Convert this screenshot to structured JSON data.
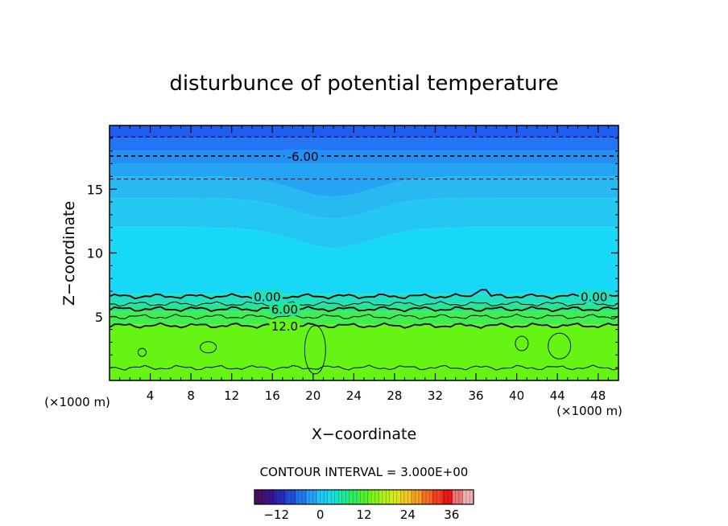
{
  "chart_data": {
    "type": "heatmap",
    "title": "disturbunce of potential temperature",
    "xlabel": "X−coordinate",
    "ylabel": "Z−coordinate",
    "x_unit": "(×1000 m)",
    "z_unit": "(×1000 m)",
    "xlim": [
      0,
      50
    ],
    "ylim": [
      0,
      20
    ],
    "x_ticks": [
      "4",
      "8",
      "12",
      "16",
      "20",
      "24",
      "28",
      "32",
      "36",
      "40",
      "44",
      "48"
    ],
    "y_ticks": [
      "5",
      "10",
      "15"
    ],
    "contour_interval_label": "CONTOUR INTERVAL = 3.000E+00",
    "contour_lines": [
      {
        "level": -9.0,
        "z": 19.1,
        "style": "dashed"
      },
      {
        "level": -6.0,
        "z": 17.6,
        "style": "dashed",
        "label": "-6.00"
      },
      {
        "level": -3.0,
        "z": 15.8,
        "style": "dashed"
      },
      {
        "level": 0.0,
        "z": 6.6,
        "style": "solid",
        "label": "0.00"
      },
      {
        "level": 3.0,
        "z": 6.0,
        "style": "solid"
      },
      {
        "level": 6.0,
        "z": 5.6,
        "style": "solid",
        "label": "6.00"
      },
      {
        "level": 9.0,
        "z": 5.0,
        "style": "solid"
      },
      {
        "level": 12.0,
        "z": 4.3,
        "style": "solid",
        "label": "12.0"
      },
      {
        "level": 15.0,
        "z": 1.0,
        "style": "solid"
      }
    ],
    "field_bands": [
      {
        "z_from": 19.0,
        "z_to": 20.0,
        "value": -12,
        "color": "#1f5cf2"
      },
      {
        "z_from": 18.0,
        "z_to": 19.0,
        "value": -9,
        "color": "#2275f4"
      },
      {
        "z_from": 17.0,
        "z_to": 18.0,
        "value": -7,
        "color": "#238ef4"
      },
      {
        "z_from": 16.0,
        "z_to": 17.0,
        "value": -5,
        "color": "#26a4f4"
      },
      {
        "z_from": 14.3,
        "z_to": 16.0,
        "value": -3,
        "color": "#28b8f2"
      },
      {
        "z_from": 12.0,
        "z_to": 14.3,
        "value": -1.5,
        "color": "#22c8f2"
      },
      {
        "z_from": 6.8,
        "z_to": 12.0,
        "value": -0.5,
        "color": "#18d8f8"
      },
      {
        "z_from": 6.0,
        "z_to": 6.8,
        "value": 1.5,
        "color": "#20e0c0"
      },
      {
        "z_from": 5.4,
        "z_to": 6.0,
        "value": 4,
        "color": "#28e690"
      },
      {
        "z_from": 4.4,
        "z_to": 5.4,
        "value": 8,
        "color": "#40ee50"
      },
      {
        "z_from": 0.0,
        "z_to": 4.4,
        "value": 13,
        "color": "#66f414"
      }
    ],
    "colorbar": {
      "ticks": [
        "−12",
        "0",
        "12",
        "24",
        "36"
      ],
      "tick_values": [
        -12,
        0,
        12,
        24,
        36
      ],
      "range": [
        -18,
        42
      ],
      "colors": [
        "#4a1060",
        "#3a1590",
        "#2a2ab8",
        "#2050d8",
        "#2478ee",
        "#26a0f4",
        "#20c8f4",
        "#18e0e0",
        "#20e8a0",
        "#30ee60",
        "#50f030",
        "#80f418",
        "#b0f020",
        "#d8e820",
        "#f0c820",
        "#f4a020",
        "#f47020",
        "#f04020",
        "#e81818",
        "#e87878",
        "#f0b0b0"
      ]
    }
  }
}
